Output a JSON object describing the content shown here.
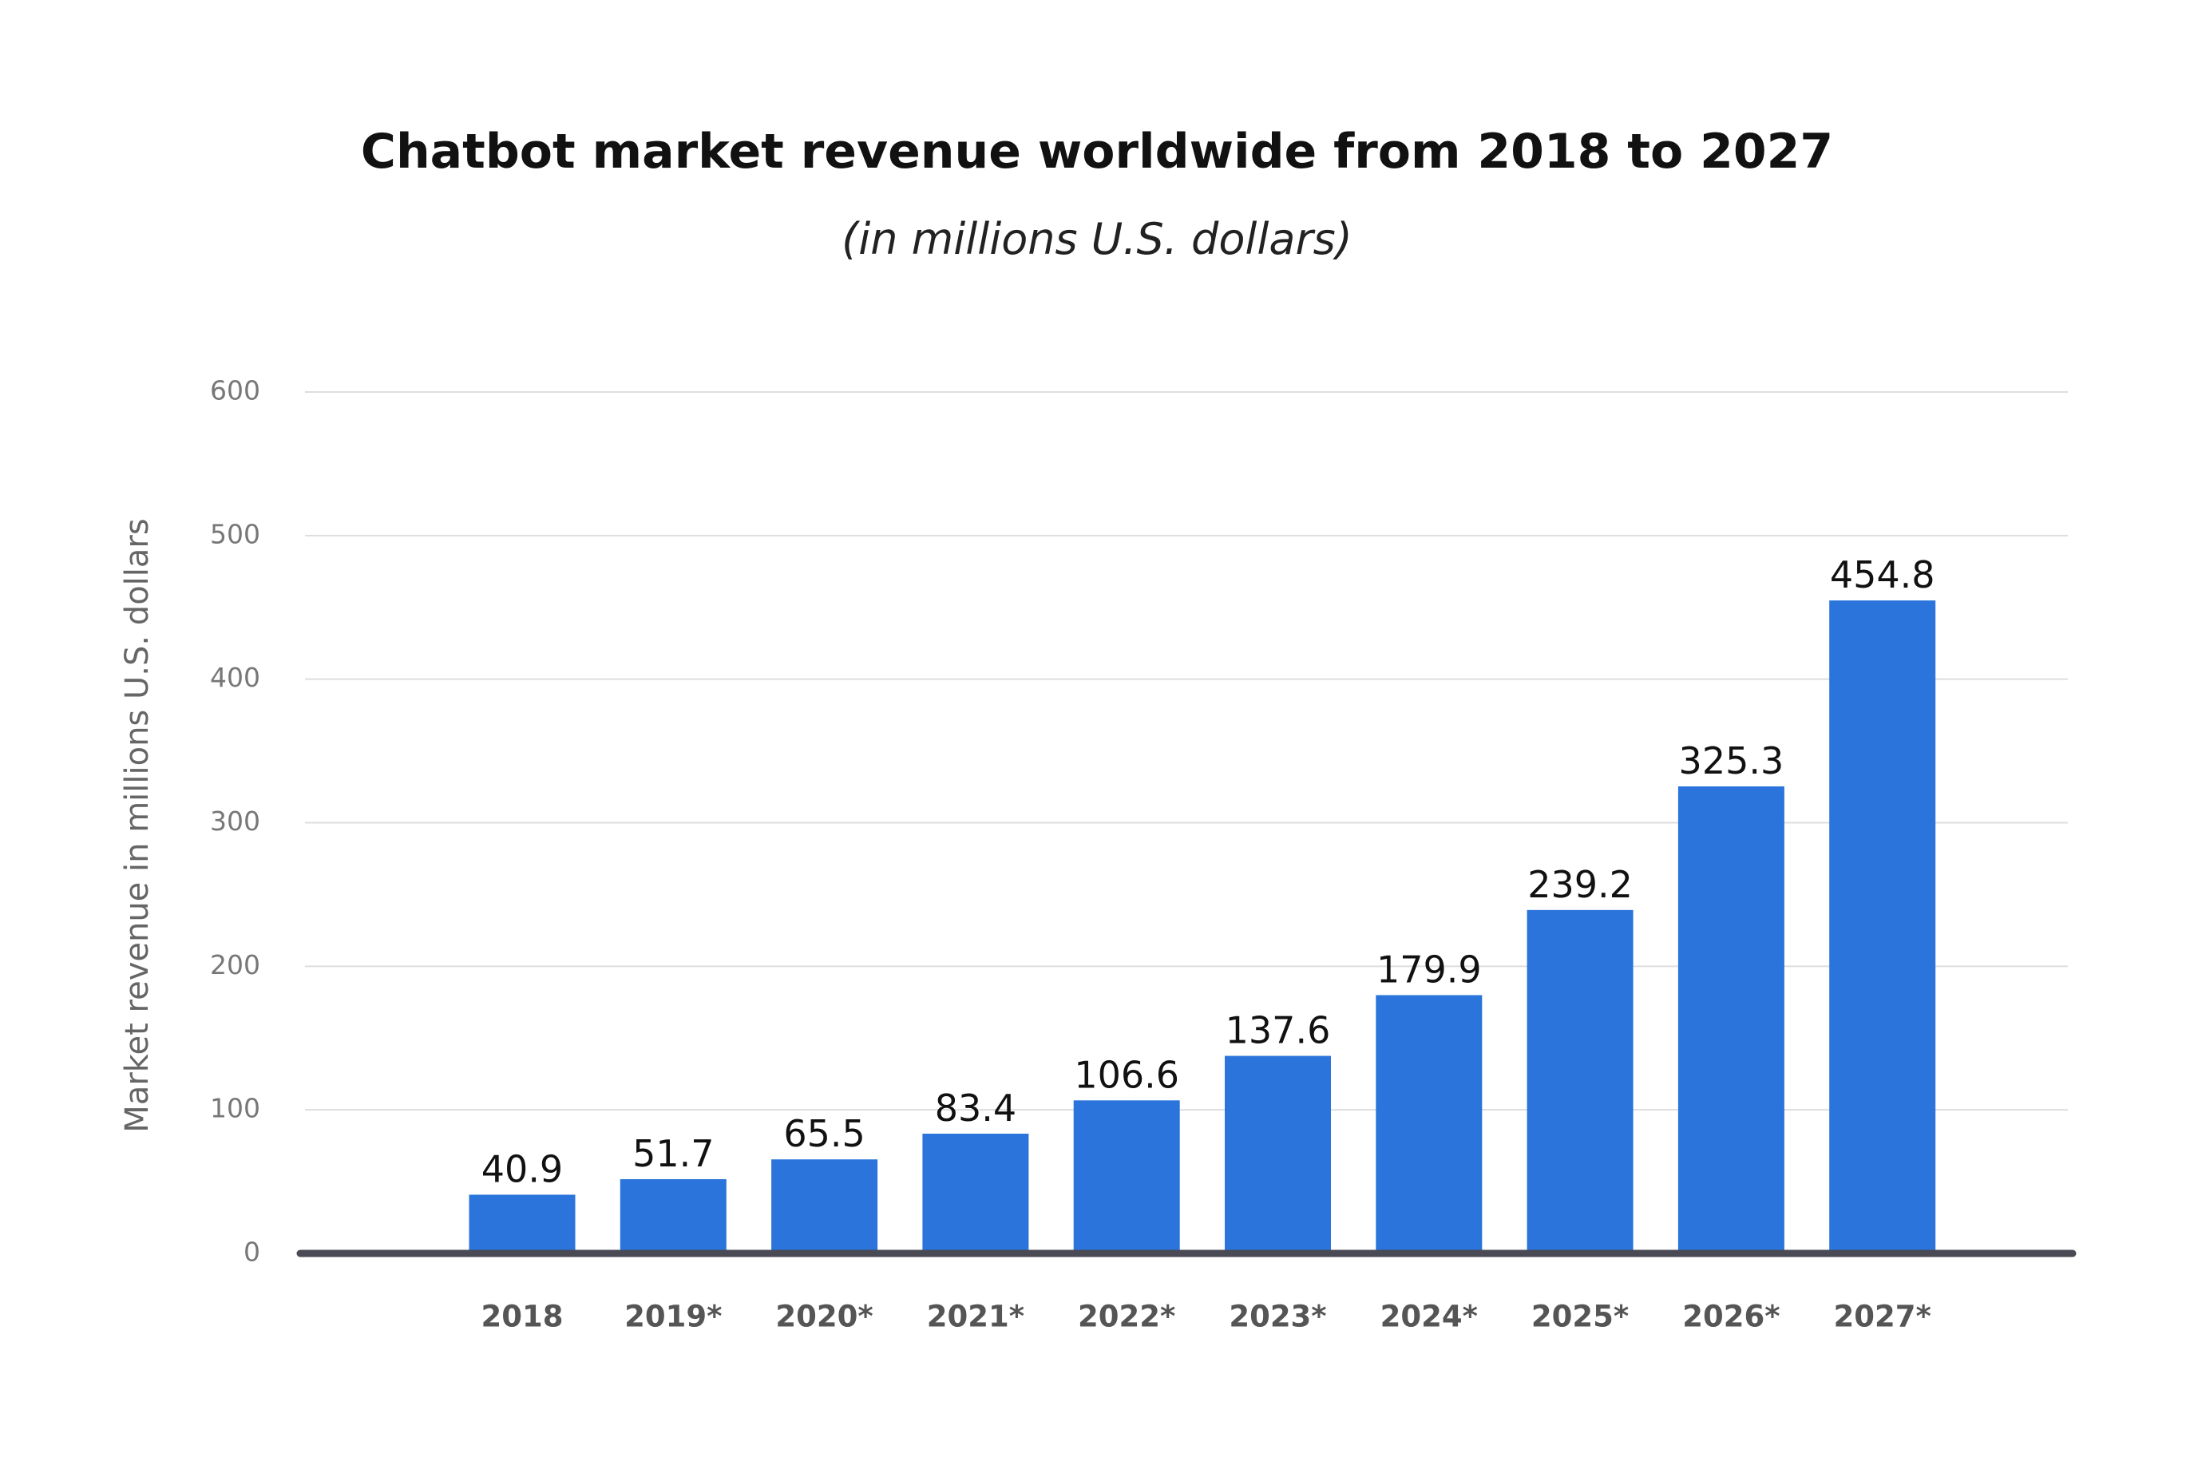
{
  "chart_data": {
    "type": "bar",
    "title": "Chatbot market revenue worldwide from 2018 to 2027",
    "subtitle": "(in millions U.S. dollars)",
    "y_label": "Market revenue in millions U.S. dollars",
    "categories": [
      "2018",
      "2019*",
      "2020*",
      "2021*",
      "2022*",
      "2023*",
      "2024*",
      "2025*",
      "2026*",
      "2027*"
    ],
    "values": [
      40.9,
      51.7,
      65.5,
      83.4,
      106.6,
      137.6,
      179.9,
      239.2,
      325.3,
      454.8
    ],
    "color": "#2a74db",
    "ylim": [
      0,
      600
    ],
    "yticks": [
      0,
      100,
      200,
      300,
      400,
      500,
      600
    ],
    "grid": true
  }
}
